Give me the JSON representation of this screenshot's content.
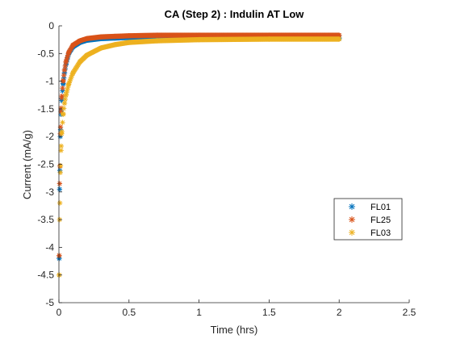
{
  "chart_data": {
    "type": "scatter",
    "title": "CA (Step 2) : Indulin AT Low",
    "xlabel": "Time (hrs)",
    "ylabel": "Current (mA/g)",
    "xlim": [
      0,
      2.5
    ],
    "ylim": [
      -5,
      0
    ],
    "xticks": [
      0,
      0.5,
      1,
      1.5,
      2,
      2.5
    ],
    "xtick_labels": [
      "0",
      "0.5",
      "1",
      "1.5",
      "2",
      "2.5"
    ],
    "yticks": [
      0,
      -0.5,
      -1,
      -1.5,
      -2,
      -2.5,
      -3,
      -3.5,
      -4,
      -4.5,
      -5
    ],
    "ytick_labels": [
      "0",
      "-0.5",
      "-1",
      "-1.5",
      "-2",
      "-2.5",
      "-3",
      "-3.5",
      "-4",
      "-4.5",
      "-5"
    ],
    "grid": false,
    "marker": "asterisk",
    "legend_position": "right",
    "series": [
      {
        "name": "FL01",
        "color": "#0072BD",
        "x": [
          0.002,
          0.005,
          0.01,
          0.015,
          0.02,
          0.03,
          0.04,
          0.05,
          0.07,
          0.1,
          0.15,
          0.2,
          0.3,
          0.4,
          0.5,
          0.7,
          1.0,
          1.5,
          2.0
        ],
        "y": [
          -4.2,
          -2.95,
          -2.0,
          -1.6,
          -1.35,
          -1.05,
          -0.85,
          -0.7,
          -0.5,
          -0.38,
          -0.3,
          -0.26,
          -0.23,
          -0.22,
          -0.21,
          -0.21,
          -0.21,
          -0.22,
          -0.22
        ]
      },
      {
        "name": "FL25",
        "color": "#D95319",
        "x": [
          0.002,
          0.005,
          0.01,
          0.015,
          0.02,
          0.03,
          0.04,
          0.05,
          0.07,
          0.1,
          0.15,
          0.2,
          0.3,
          0.4,
          0.5,
          0.7,
          1.0,
          1.5,
          2.0
        ],
        "y": [
          -4.15,
          -2.85,
          -1.95,
          -1.55,
          -1.3,
          -1.0,
          -0.8,
          -0.65,
          -0.48,
          -0.35,
          -0.27,
          -0.23,
          -0.2,
          -0.19,
          -0.18,
          -0.17,
          -0.17,
          -0.17,
          -0.17
        ]
      },
      {
        "name": "FL03",
        "color": "#EDB120",
        "x": [
          0.002,
          0.005,
          0.01,
          0.015,
          0.02,
          0.03,
          0.04,
          0.05,
          0.07,
          0.1,
          0.15,
          0.2,
          0.3,
          0.4,
          0.5,
          0.7,
          1.0,
          1.5,
          2.0
        ],
        "y": [
          -4.5,
          -3.5,
          -2.65,
          -2.25,
          -1.95,
          -1.6,
          -1.4,
          -1.25,
          -1.05,
          -0.85,
          -0.65,
          -0.53,
          -0.4,
          -0.34,
          -0.3,
          -0.27,
          -0.25,
          -0.24,
          -0.24
        ]
      }
    ]
  }
}
